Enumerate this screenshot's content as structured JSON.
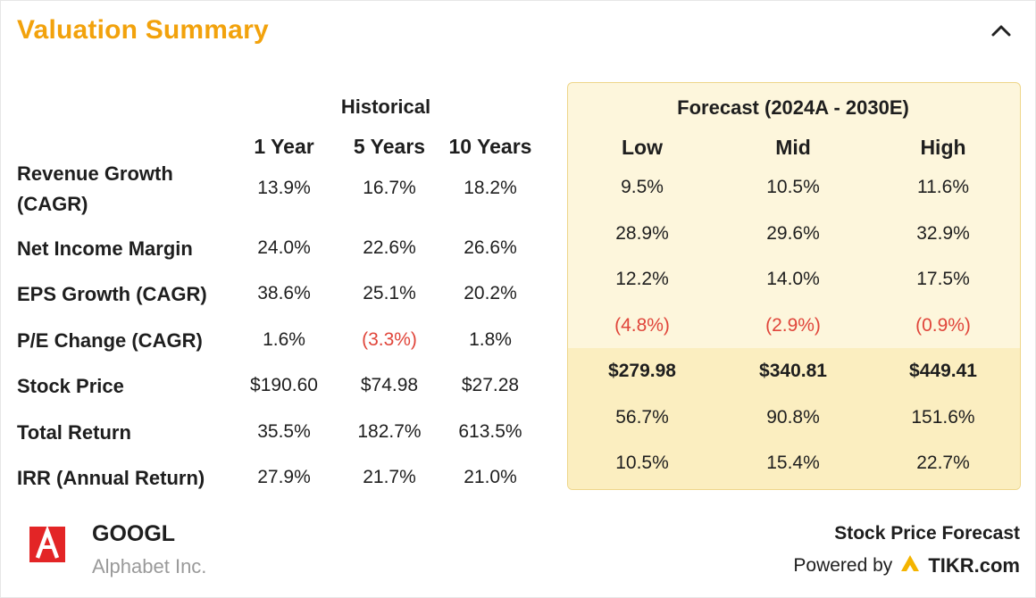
{
  "card": {
    "title": "Valuation Summary"
  },
  "historical": {
    "group_label": "Historical",
    "columns": [
      "1 Year",
      "5 Years",
      "10 Years"
    ]
  },
  "forecast": {
    "group_label": "Forecast (2024A - 2030E)",
    "columns": [
      "Low",
      "Mid",
      "High"
    ]
  },
  "rows": [
    {
      "label_lines": [
        "Revenue Growth",
        "(CAGR)"
      ],
      "historical": [
        "13.9%",
        "16.7%",
        "18.2%"
      ],
      "forecast": [
        "9.5%",
        "10.5%",
        "11.6%"
      ]
    },
    {
      "label_lines": [
        "Net Income Margin"
      ],
      "historical": [
        "24.0%",
        "22.6%",
        "26.6%"
      ],
      "forecast": [
        "28.9%",
        "29.6%",
        "32.9%"
      ]
    },
    {
      "label_lines": [
        "EPS Growth (CAGR)"
      ],
      "historical": [
        "38.6%",
        "25.1%",
        "20.2%"
      ],
      "forecast": [
        "12.2%",
        "14.0%",
        "17.5%"
      ]
    },
    {
      "label_lines": [
        "P/E Change (CAGR)"
      ],
      "historical": [
        "1.6%",
        "(3.3%)",
        "1.8%"
      ],
      "forecast": [
        "(4.8%)",
        "(2.9%)",
        "(0.9%)"
      ]
    },
    {
      "label_lines": [
        "Stock Price"
      ],
      "historical": [
        "$190.60",
        "$74.98",
        "$27.28"
      ],
      "forecast": [
        "$279.98",
        "$340.81",
        "$449.41"
      ]
    },
    {
      "label_lines": [
        "Total Return"
      ],
      "historical": [
        "35.5%",
        "182.7%",
        "613.5%"
      ],
      "forecast": [
        "56.7%",
        "90.8%",
        "151.6%"
      ]
    },
    {
      "label_lines": [
        "IRR (Annual Return)"
      ],
      "historical": [
        "27.9%",
        "21.7%",
        "21.0%"
      ],
      "forecast": [
        "10.5%",
        "15.4%",
        "22.7%"
      ]
    }
  ],
  "company": {
    "ticker": "GOOGL",
    "name": "Alphabet Inc.",
    "logo_icon": "alphabet-logo-icon"
  },
  "footer": {
    "forecast_link": "Stock Price Forecast",
    "powered_by": "Powered by",
    "brand": "TIKR.com",
    "brand_icon": "tikr-logo-icon"
  },
  "colors": {
    "title": "#f2a20c",
    "negative": "#e0453a",
    "forecast_panel": "#fdf6dc",
    "forecast_panel_dark": "#fbeec0",
    "logo_bg": "#e32526",
    "tikr_accent": "#f4b400"
  }
}
